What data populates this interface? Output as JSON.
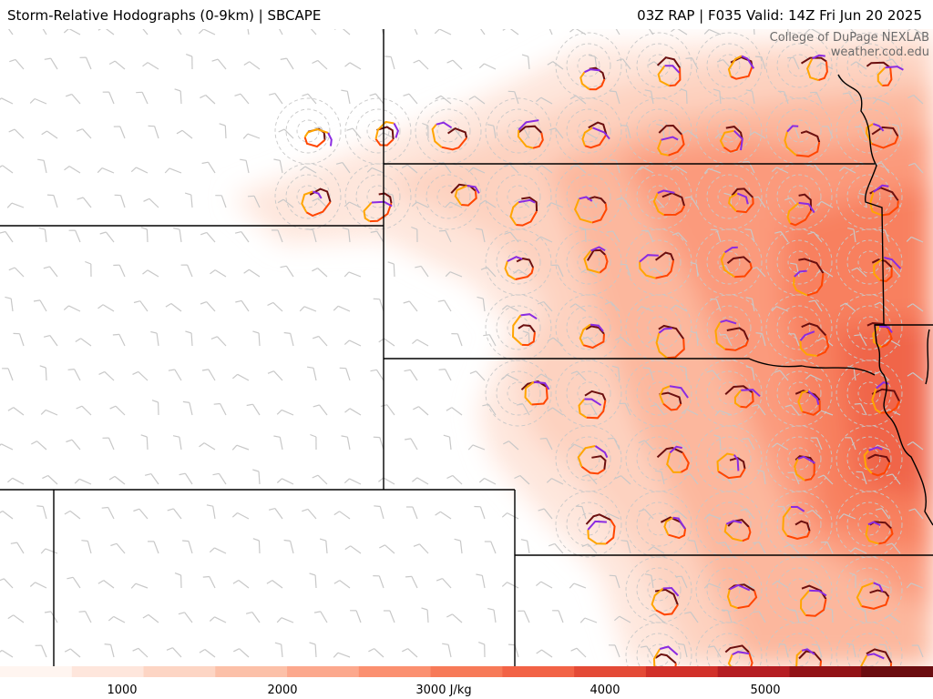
{
  "header": {
    "title_left": "Storm-Relative Hodographs (0-9km) | SBCAPE",
    "title_right": "03Z RAP | F035 Valid: 14Z Fri Jun 20 2025"
  },
  "credit": {
    "line1": "College of DuPage NEXLAB",
    "line2": "weather.cod.edu"
  },
  "colorbar": {
    "labels": [
      "1000",
      "2000",
      "3000 J/kg",
      "4000",
      "5000"
    ],
    "colors": [
      "#fff5f0",
      "#fee6dc",
      "#fdd5c4",
      "#fcc0a8",
      "#fca88d",
      "#fb9070",
      "#f77a58",
      "#f26346",
      "#e44a36",
      "#d13029",
      "#b51d22",
      "#921216",
      "#6b0d10"
    ]
  },
  "legend_colors": {
    "hodo_0_1km": "#6b0f0f",
    "hodo_1_3km": "#ff4500",
    "hodo_3_6km": "#ffa500",
    "hodo_6_9km": "#8a2be2",
    "barb": "#c8c8c8",
    "border": "#000000"
  }
}
